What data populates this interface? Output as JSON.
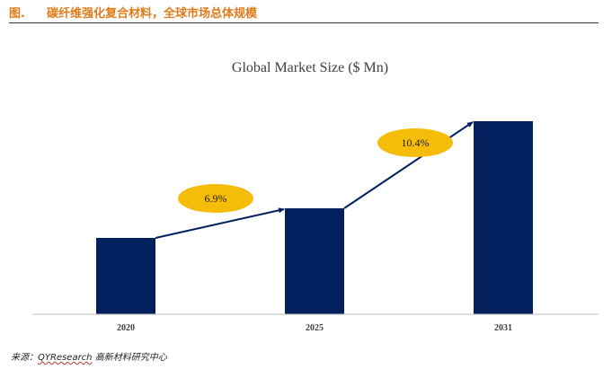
{
  "figure": {
    "number": "图.",
    "caption": "碳纤维强化复合材料，全球市场总体规模"
  },
  "source": {
    "prefix": "来源：",
    "brand": "QYResearch",
    "suffix": "高新材料研究中心"
  },
  "colors": {
    "bar": "#021f5e",
    "growth_bubble": "#f5bd0a",
    "caption": "#e07b1a",
    "axis": "#bfbfbf"
  },
  "chart_data": {
    "type": "bar",
    "title": "Global Market Size ($ Mn)",
    "categories": [
      "2020",
      "2025",
      "2031"
    ],
    "values": [
      85,
      118,
      215
    ],
    "ylim": [
      0,
      230
    ],
    "xlabel": "",
    "ylabel": "",
    "grid": false,
    "legend": "none",
    "annotations": [
      {
        "label": "6.9%",
        "from": "2020",
        "to": "2025"
      },
      {
        "label": "10.4%",
        "from": "2025",
        "to": "2031"
      }
    ]
  }
}
